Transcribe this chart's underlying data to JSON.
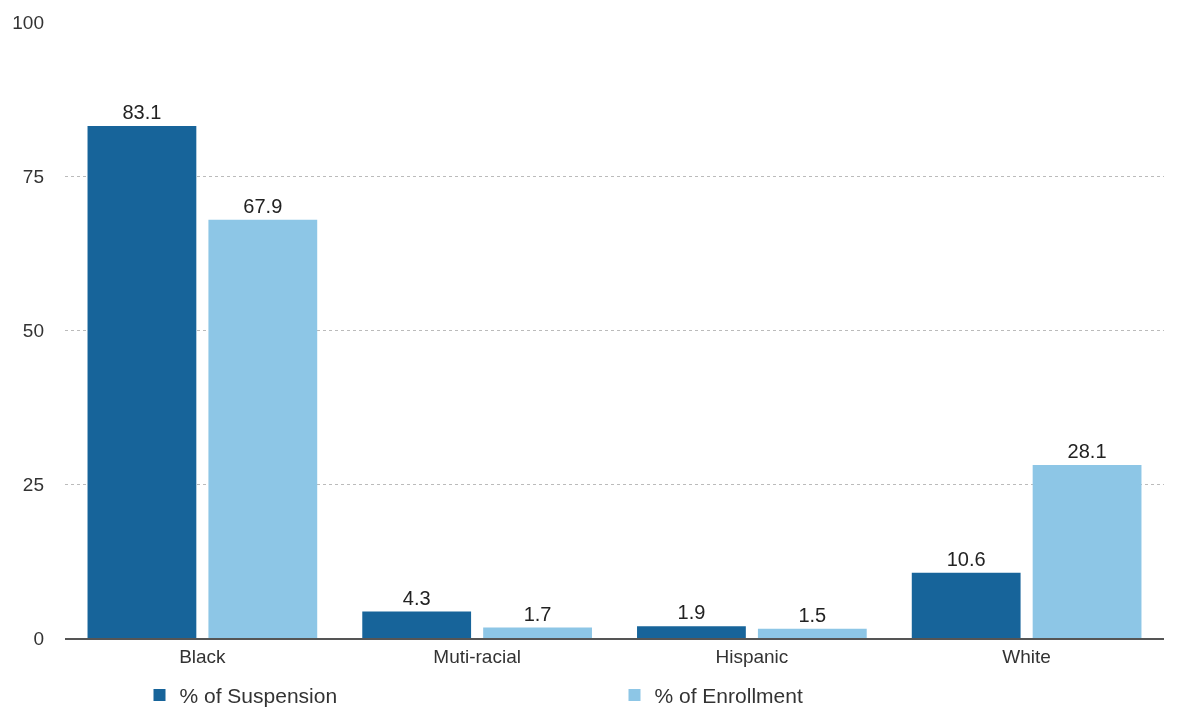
{
  "chart_data": {
    "type": "bar",
    "categories": [
      "Black",
      "Muti-racial",
      "Hispanic",
      "White"
    ],
    "series": [
      {
        "name": "% of Suspension",
        "color": "#17649a",
        "values": [
          83.1,
          4.3,
          1.9,
          10.6
        ]
      },
      {
        "name": "% of Enrollment",
        "color": "#8dc6e6",
        "values": [
          67.9,
          1.7,
          1.5,
          28.1
        ]
      }
    ],
    "ylim": [
      0,
      100
    ],
    "yticks": [
      0,
      25,
      50,
      75,
      100
    ],
    "grid": "y",
    "legend": "bottom",
    "data_labels": true
  }
}
